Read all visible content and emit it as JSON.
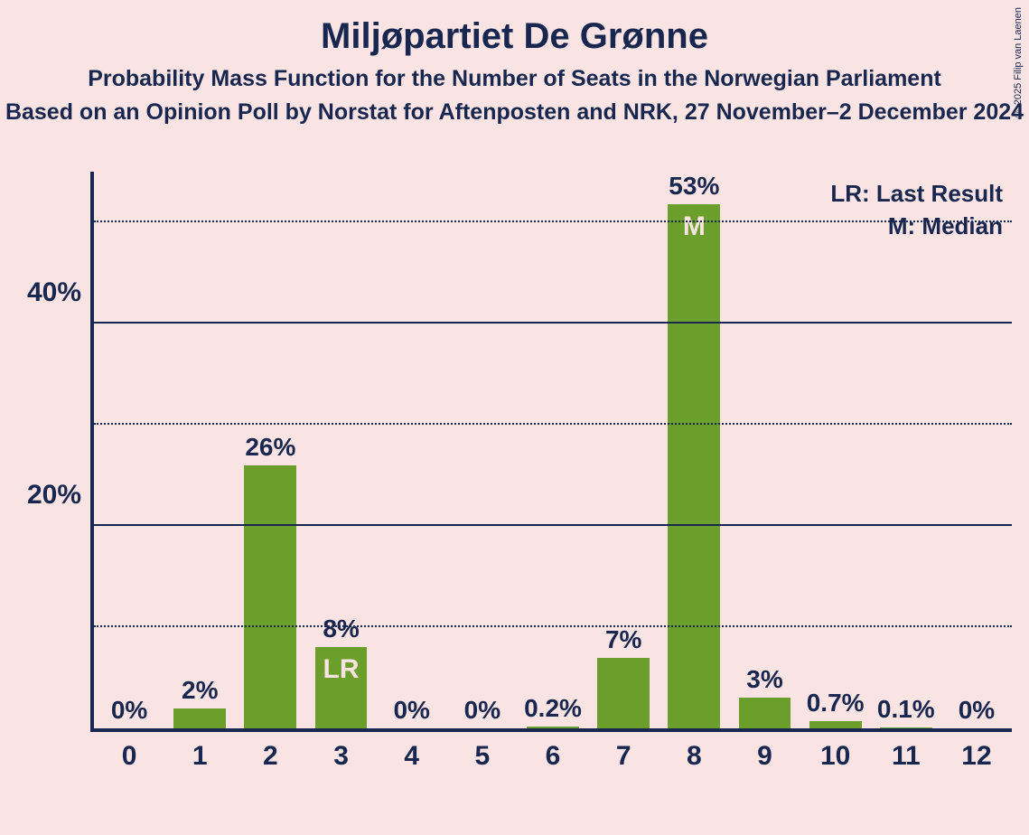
{
  "title": "Miljøpartiet De Grønne",
  "subtitle1": "Probability Mass Function for the Number of Seats in the Norwegian Parliament",
  "subtitle2": "Based on an Opinion Poll by Norstat for Aftenposten and NRK, 27 November–2 December 2024",
  "copyright": "© 2025 Filip van Laenen",
  "legend": {
    "lr": "LR: Last Result",
    "m": "M: Median"
  },
  "chart": {
    "type": "bar",
    "bar_color": "#6b9e2a",
    "axis_color": "#17274f",
    "background_color": "#fae3e3",
    "text_color": "#17274f",
    "annot_text_color": "#fae3e3",
    "title_fontsize": 40,
    "subtitle_fontsize": 25,
    "axis_label_fontsize": 30,
    "value_label_fontsize": 28,
    "legend_fontsize": 26,
    "ylim": [
      0,
      55
    ],
    "y_major_ticks": [
      20,
      40
    ],
    "y_minor_ticks": [
      10,
      30,
      50
    ],
    "bar_width_ratio": 0.74,
    "categories": [
      "0",
      "1",
      "2",
      "3",
      "4",
      "5",
      "6",
      "7",
      "8",
      "9",
      "10",
      "11",
      "12"
    ],
    "values": [
      0,
      2,
      26,
      8,
      0,
      0,
      0.2,
      7,
      53,
      3,
      0.7,
      0.1,
      0
    ],
    "value_labels": [
      "0%",
      "2%",
      "26%",
      "8%",
      "0%",
      "0%",
      "0.2%",
      "7%",
      "53%",
      "3%",
      "0.7%",
      "0.1%",
      "0%"
    ],
    "annotations": {
      "3": "LR",
      "8": "M"
    }
  }
}
